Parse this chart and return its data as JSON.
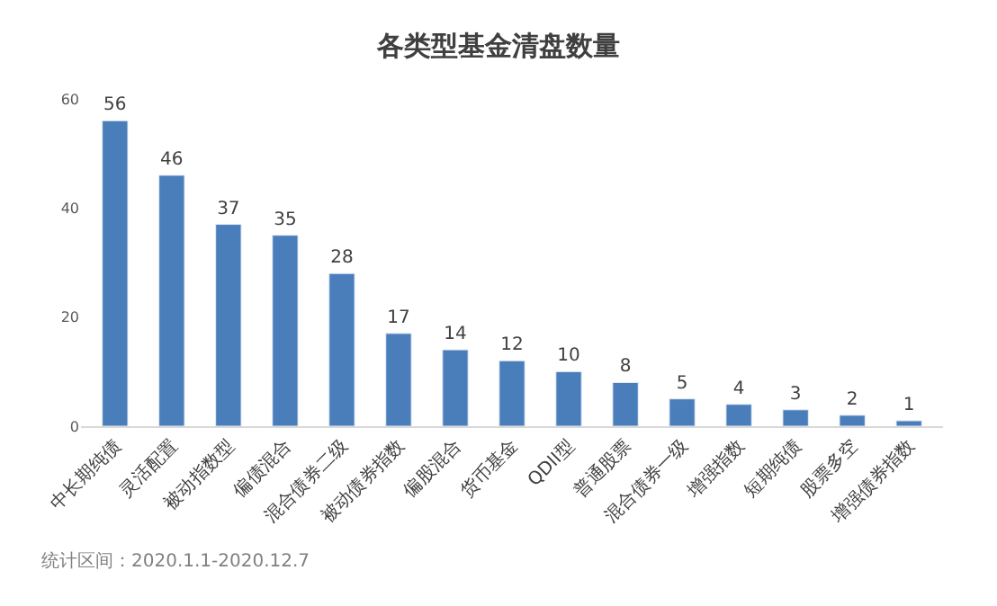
{
  "chart_data": {
    "type": "bar",
    "title": "各类型基金清盘数量",
    "categories": [
      "中长期纯债",
      "灵活配置",
      "被动指数型",
      "偏债混合",
      "混合债券二级",
      "被动债券指数",
      "偏股混合",
      "货币基金",
      "QDII型",
      "普通股票",
      "混合债券一级",
      "增强指数",
      "短期纯债",
      "股票多空",
      "增强债券指数"
    ],
    "values": [
      56,
      46,
      37,
      35,
      28,
      17,
      14,
      12,
      10,
      8,
      5,
      4,
      3,
      2,
      1
    ],
    "color": "#4a7ebb",
    "ylim": [
      0,
      60
    ],
    "yticks": [
      0,
      20,
      40,
      60
    ],
    "data_labels": true,
    "annotations": [
      "统计区间：2020.1.1-2020.12.7"
    ]
  }
}
